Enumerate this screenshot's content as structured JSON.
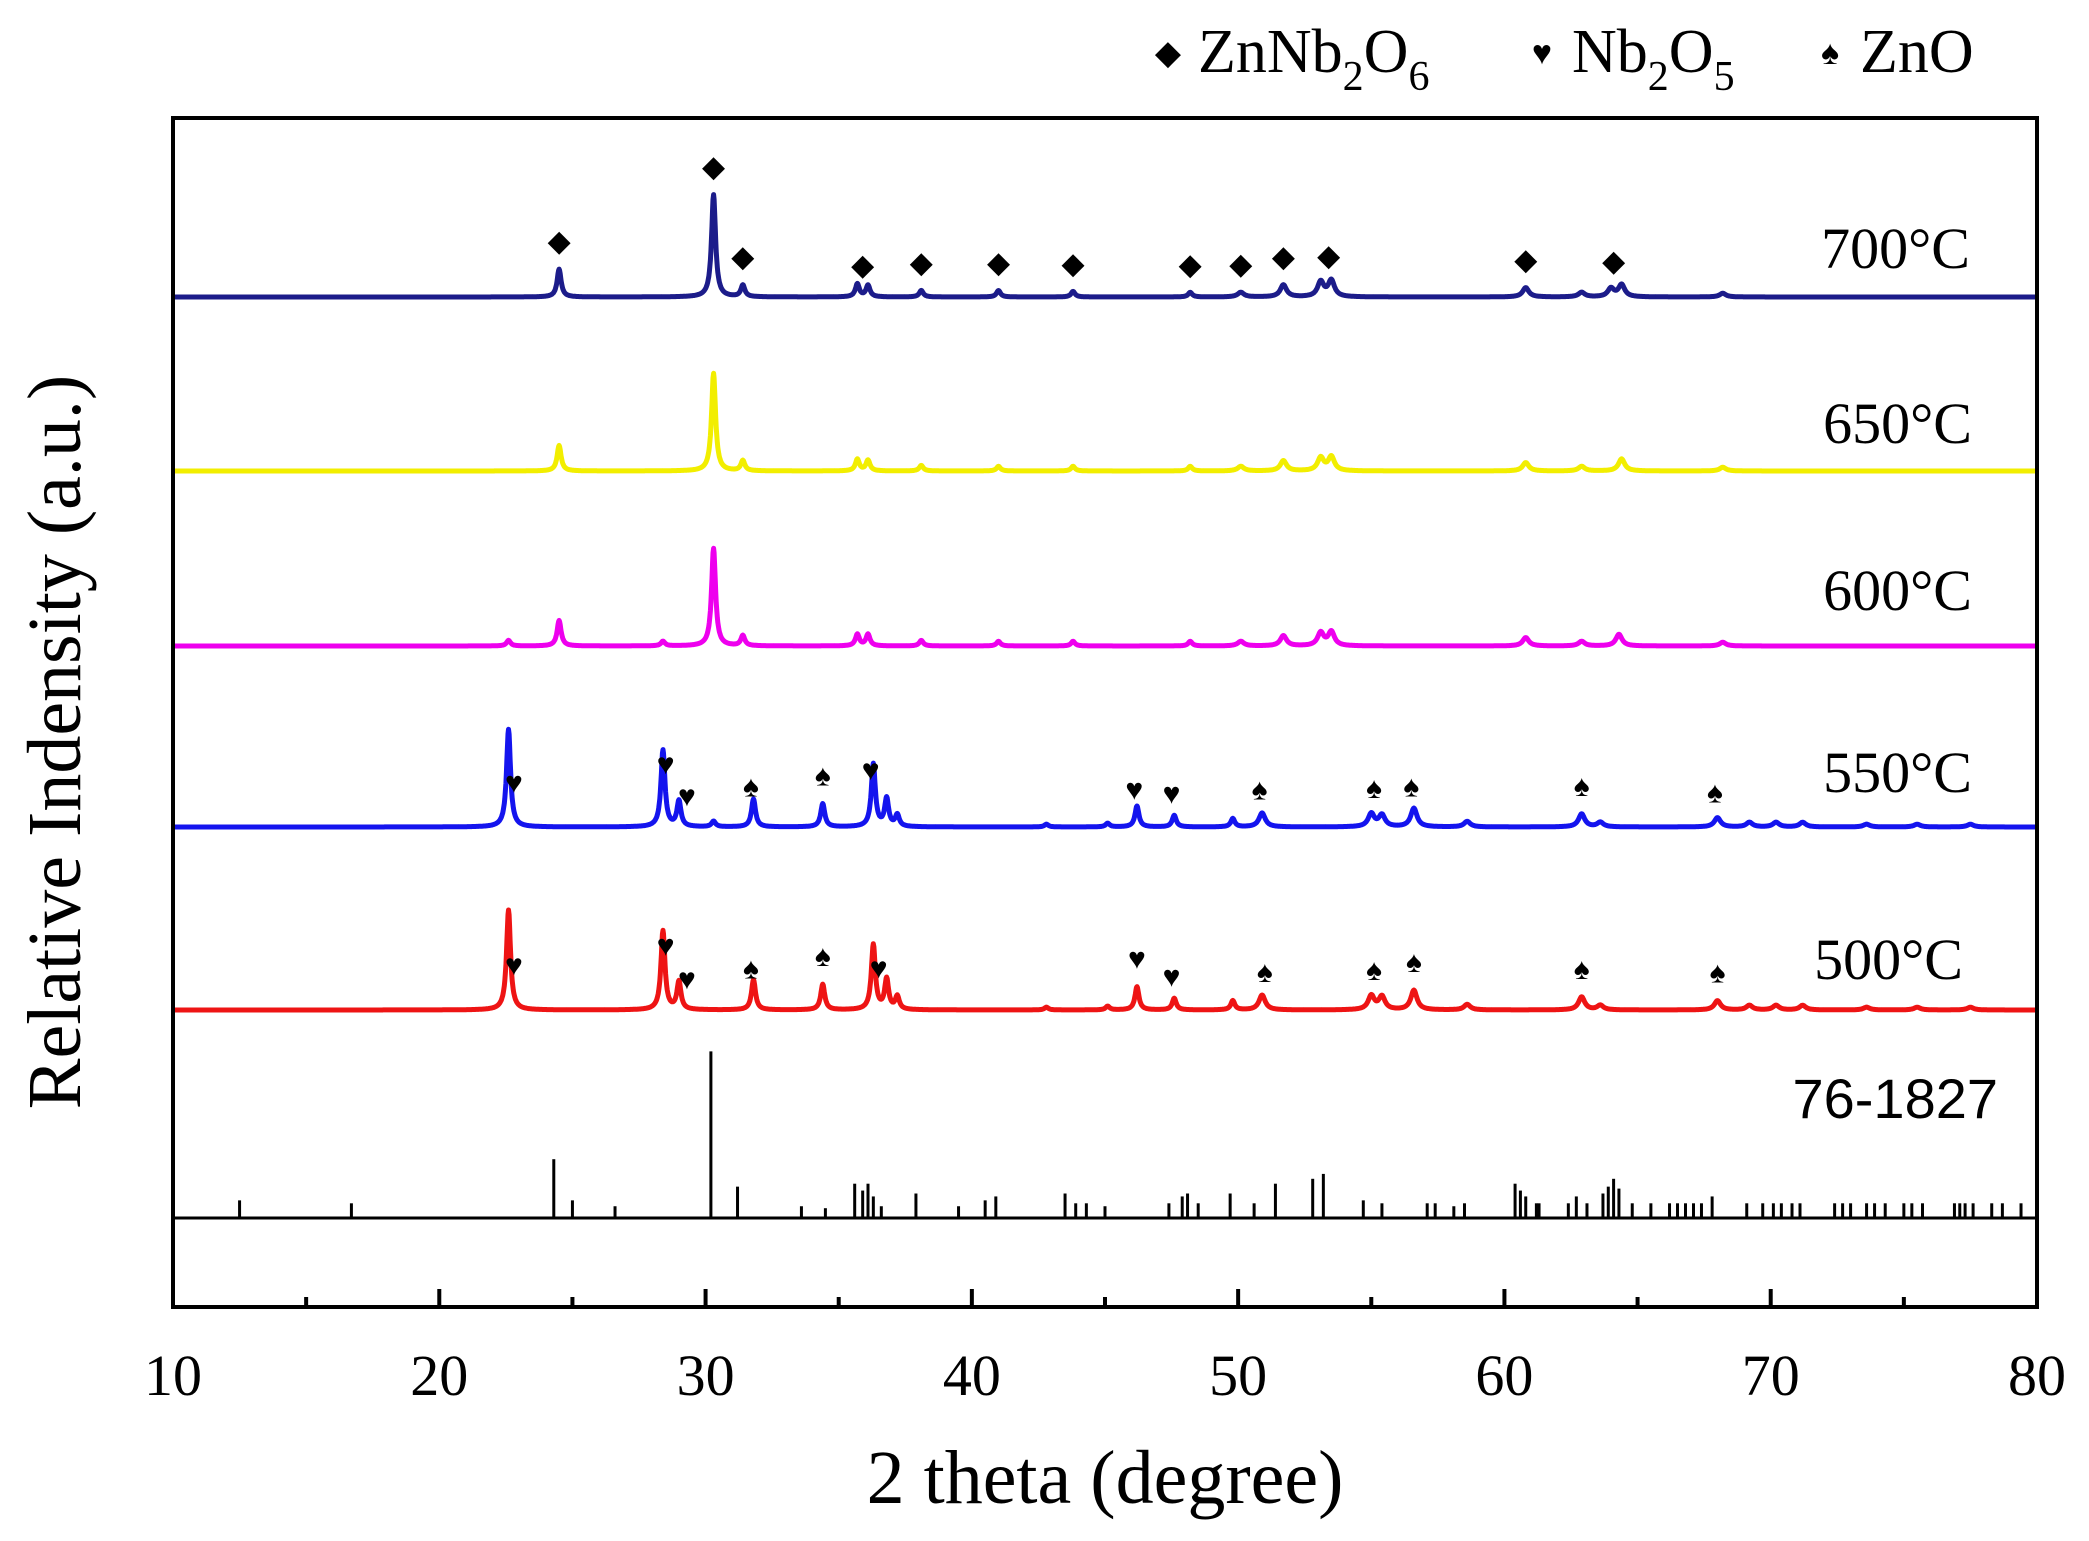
{
  "chart_data": {
    "type": "line",
    "title": "",
    "xlabel": "2 theta (degree)",
    "ylabel": "Relative Indensity (a.u.)",
    "xlim": [
      10,
      80
    ],
    "xticks": [
      10,
      20,
      30,
      40,
      50,
      60,
      70,
      80
    ],
    "xtick_labels": [
      "10",
      "20",
      "30",
      "40",
      "50",
      "60",
      "70",
      "80"
    ],
    "legend": {
      "position": "top-right",
      "entries": [
        {
          "symbol": "diamond",
          "glyph": "◆",
          "label": "ZnNb",
          "sub1": "2",
          "mid": "O",
          "sub2": "6"
        },
        {
          "symbol": "heart",
          "glyph": "♥",
          "label": "Nb",
          "sub1": "2",
          "mid": "O",
          "sub2": "5"
        },
        {
          "symbol": "spade",
          "glyph": "♠",
          "label": "ZnO",
          "sub1": "",
          "mid": "",
          "sub2": ""
        }
      ]
    },
    "series": [
      {
        "name": "700°C",
        "color": "#1c1c8a",
        "peaks": [
          [
            24.5,
            60
          ],
          [
            30.3,
            220
          ],
          [
            31.4,
            25
          ],
          [
            35.7,
            28
          ],
          [
            36.1,
            25
          ],
          [
            38.1,
            14
          ],
          [
            41,
            14
          ],
          [
            43.8,
            12
          ],
          [
            48.2,
            10
          ],
          [
            50.1,
            10
          ],
          [
            51.7,
            26
          ],
          [
            53.1,
            32
          ],
          [
            53.5,
            35
          ],
          [
            60.8,
            20
          ],
          [
            62.9,
            10
          ],
          [
            64,
            18
          ],
          [
            64.4,
            26
          ],
          [
            68.2,
            8
          ]
        ],
        "markers": [
          {
            "x": 24.5,
            "symbol": "diamond"
          },
          {
            "x": 30.3,
            "symbol": "diamond"
          },
          {
            "x": 31.4,
            "symbol": "diamond"
          },
          {
            "x": 35.9,
            "symbol": "diamond"
          },
          {
            "x": 38.1,
            "symbol": "diamond"
          },
          {
            "x": 41,
            "symbol": "diamond"
          },
          {
            "x": 43.8,
            "symbol": "diamond"
          },
          {
            "x": 48.2,
            "symbol": "diamond"
          },
          {
            "x": 50.1,
            "symbol": "diamond"
          },
          {
            "x": 51.7,
            "symbol": "diamond"
          },
          {
            "x": 53.4,
            "symbol": "diamond"
          },
          {
            "x": 60.8,
            "symbol": "diamond"
          },
          {
            "x": 64.1,
            "symbol": "diamond"
          }
        ]
      },
      {
        "name": "650°C",
        "color": "#f2ee00",
        "peaks": [
          [
            24.5,
            55
          ],
          [
            30.3,
            210
          ],
          [
            31.4,
            22
          ],
          [
            35.7,
            25
          ],
          [
            36.1,
            23
          ],
          [
            38.1,
            12
          ],
          [
            41,
            10
          ],
          [
            43.8,
            10
          ],
          [
            48.2,
            10
          ],
          [
            50.1,
            10
          ],
          [
            51.7,
            22
          ],
          [
            53.1,
            28
          ],
          [
            53.5,
            30
          ],
          [
            60.8,
            18
          ],
          [
            62.9,
            10
          ],
          [
            64.4,
            26
          ],
          [
            68.2,
            8
          ]
        ],
        "markers": []
      },
      {
        "name": "600°C",
        "color": "#ee00ee",
        "peaks": [
          [
            22.6,
            12
          ],
          [
            24.5,
            55
          ],
          [
            28.4,
            10
          ],
          [
            30.3,
            210
          ],
          [
            31.4,
            22
          ],
          [
            35.7,
            25
          ],
          [
            36.1,
            25
          ],
          [
            38.1,
            12
          ],
          [
            41,
            10
          ],
          [
            43.8,
            10
          ],
          [
            48.2,
            10
          ],
          [
            50.1,
            10
          ],
          [
            51.7,
            22
          ],
          [
            53.1,
            28
          ],
          [
            53.5,
            30
          ],
          [
            60.8,
            18
          ],
          [
            62.9,
            10
          ],
          [
            64.3,
            25
          ],
          [
            68.2,
            8
          ]
        ],
        "markers": []
      },
      {
        "name": "550°C",
        "color": "#1414ee",
        "peaks": [
          [
            22.6,
            210
          ],
          [
            28.4,
            165
          ],
          [
            29,
            55
          ],
          [
            30.3,
            12
          ],
          [
            31.8,
            60
          ],
          [
            34.4,
            50
          ],
          [
            36.3,
            135
          ],
          [
            36.8,
            60
          ],
          [
            37.2,
            25
          ],
          [
            42.8,
            6
          ],
          [
            45.1,
            8
          ],
          [
            46.2,
            45
          ],
          [
            47.6,
            25
          ],
          [
            49.8,
            18
          ],
          [
            50.9,
            30
          ],
          [
            55,
            28
          ],
          [
            55.4,
            25
          ],
          [
            56.6,
            40
          ],
          [
            58.6,
            12
          ],
          [
            62.9,
            28
          ],
          [
            63.6,
            10
          ],
          [
            68,
            20
          ],
          [
            69.2,
            10
          ],
          [
            70.2,
            10
          ],
          [
            71.2,
            10
          ],
          [
            73.6,
            6
          ],
          [
            75.5,
            6
          ],
          [
            77.5,
            6
          ]
        ],
        "markers": [
          {
            "x": 22.8,
            "symbol": "heart"
          },
          {
            "x": 28.5,
            "symbol": "heart"
          },
          {
            "x": 29.3,
            "symbol": "heart"
          },
          {
            "x": 31.7,
            "symbol": "spade"
          },
          {
            "x": 34.4,
            "symbol": "spade"
          },
          {
            "x": 36.2,
            "symbol": "heart"
          },
          {
            "x": 46.1,
            "symbol": "heart"
          },
          {
            "x": 47.5,
            "symbol": "heart"
          },
          {
            "x": 50.8,
            "symbol": "spade"
          },
          {
            "x": 55.1,
            "symbol": "spade"
          },
          {
            "x": 56.5,
            "symbol": "spade"
          },
          {
            "x": 62.9,
            "symbol": "spade"
          },
          {
            "x": 67.9,
            "symbol": "spade"
          }
        ]
      },
      {
        "name": "500°C",
        "color": "#ee1414",
        "peaks": [
          [
            22.6,
            215
          ],
          [
            28.4,
            170
          ],
          [
            29,
            60
          ],
          [
            31.8,
            65
          ],
          [
            34.4,
            55
          ],
          [
            36.3,
            140
          ],
          [
            36.8,
            65
          ],
          [
            37.2,
            28
          ],
          [
            42.8,
            6
          ],
          [
            45.1,
            8
          ],
          [
            46.2,
            50
          ],
          [
            47.6,
            25
          ],
          [
            49.8,
            20
          ],
          [
            50.9,
            32
          ],
          [
            55,
            30
          ],
          [
            55.4,
            28
          ],
          [
            56.6,
            42
          ],
          [
            58.6,
            12
          ],
          [
            62.9,
            28
          ],
          [
            63.6,
            10
          ],
          [
            68,
            20
          ],
          [
            69.2,
            10
          ],
          [
            70.2,
            10
          ],
          [
            71.2,
            10
          ],
          [
            73.6,
            6
          ],
          [
            75.5,
            6
          ],
          [
            77.5,
            6
          ]
        ],
        "markers": [
          {
            "x": 22.8,
            "symbol": "heart"
          },
          {
            "x": 28.5,
            "symbol": "heart"
          },
          {
            "x": 29.3,
            "symbol": "heart"
          },
          {
            "x": 31.7,
            "symbol": "spade"
          },
          {
            "x": 34.4,
            "symbol": "spade"
          },
          {
            "x": 36.5,
            "symbol": "heart"
          },
          {
            "x": 46.2,
            "symbol": "heart"
          },
          {
            "x": 47.5,
            "symbol": "heart"
          },
          {
            "x": 51,
            "symbol": "spade"
          },
          {
            "x": 55.1,
            "symbol": "spade"
          },
          {
            "x": 56.6,
            "symbol": "spade"
          },
          {
            "x": 62.9,
            "symbol": "spade"
          },
          {
            "x": 68,
            "symbol": "spade"
          }
        ]
      }
    ],
    "reference": {
      "name": "76-1827",
      "sticks": [
        [
          12.5,
          18
        ],
        [
          16.7,
          15
        ],
        [
          24.3,
          60
        ],
        [
          25,
          18
        ],
        [
          26.6,
          12
        ],
        [
          30.2,
          170
        ],
        [
          31.2,
          32
        ],
        [
          33.6,
          12
        ],
        [
          34.5,
          10
        ],
        [
          35.6,
          35
        ],
        [
          35.9,
          28
        ],
        [
          36.1,
          35
        ],
        [
          36.3,
          22
        ],
        [
          36.6,
          12
        ],
        [
          37.9,
          25
        ],
        [
          39.5,
          12
        ],
        [
          40.5,
          18
        ],
        [
          40.9,
          22
        ],
        [
          43.5,
          25
        ],
        [
          43.9,
          15
        ],
        [
          44.3,
          15
        ],
        [
          45,
          12
        ],
        [
          47.4,
          15
        ],
        [
          47.9,
          22
        ],
        [
          48.1,
          25
        ],
        [
          48.5,
          15
        ],
        [
          49.7,
          25
        ],
        [
          50.6,
          15
        ],
        [
          51.4,
          35
        ],
        [
          52.8,
          40
        ],
        [
          53.2,
          45
        ],
        [
          54.7,
          18
        ],
        [
          55.4,
          15
        ],
        [
          57.1,
          15
        ],
        [
          57.4,
          15
        ],
        [
          58.1,
          12
        ],
        [
          58.5,
          15
        ],
        [
          60.4,
          35
        ],
        [
          60.6,
          28
        ],
        [
          60.8,
          22
        ],
        [
          61.2,
          15
        ],
        [
          61.3,
          15
        ],
        [
          62.4,
          15
        ],
        [
          62.7,
          22
        ],
        [
          63.1,
          15
        ],
        [
          63.7,
          25
        ],
        [
          63.9,
          32
        ],
        [
          64.1,
          40
        ],
        [
          64.3,
          30
        ],
        [
          64.8,
          15
        ],
        [
          65.5,
          15
        ],
        [
          66.2,
          15
        ],
        [
          66.5,
          15
        ],
        [
          66.8,
          15
        ],
        [
          67.1,
          15
        ],
        [
          67.4,
          15
        ],
        [
          67.8,
          22
        ],
        [
          69.1,
          15
        ],
        [
          69.7,
          15
        ],
        [
          70.1,
          15
        ],
        [
          70.4,
          15
        ],
        [
          70.8,
          15
        ],
        [
          71.1,
          15
        ],
        [
          72.4,
          15
        ],
        [
          72.7,
          15
        ],
        [
          73,
          15
        ],
        [
          73.6,
          15
        ],
        [
          73.9,
          15
        ],
        [
          74.3,
          15
        ],
        [
          75,
          15
        ],
        [
          75.3,
          15
        ],
        [
          75.7,
          15
        ],
        [
          76.9,
          15
        ],
        [
          77.1,
          15
        ],
        [
          77.3,
          15
        ],
        [
          77.6,
          15
        ],
        [
          78.3,
          15
        ],
        [
          78.7,
          15
        ],
        [
          79.4,
          15
        ]
      ]
    }
  }
}
